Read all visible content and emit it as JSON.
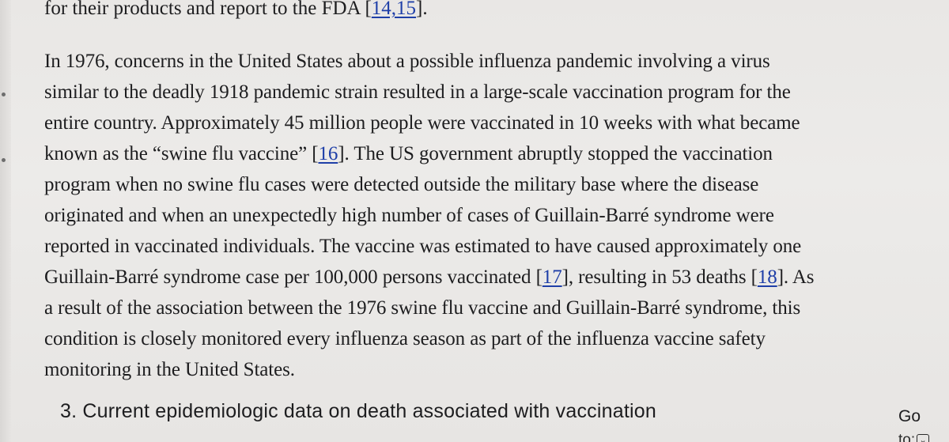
{
  "article": {
    "top_line": {
      "text": "for their products and report to the FDA [",
      "refs": "14,15",
      "end": "]."
    },
    "paragraph": {
      "l1": "In 1976, concerns in the United States about a possible influenza pandemic involving a virus",
      "l2": "similar to the deadly 1918 pandemic strain resulted in a large-scale vaccination program for the",
      "l3": "entire country. Approximately 45 million people were vaccinated in 10 weeks with what became",
      "l4a": "known as the “swine flu vaccine” [",
      "ref16": "16",
      "l4b": "]. The US government abruptly stopped the vaccination",
      "l5": "program when no swine flu cases were detected outside the military base where the disease",
      "l6": "originated and when an unexpectedly high number of cases of Guillain-Barré syndrome were",
      "l7": "reported in vaccinated individuals. The vaccine was estimated to have caused approximately one",
      "l8a": "Guillain-Barré syndrome case per 100,000 persons vaccinated [",
      "ref17": "17",
      "l8b": "], resulting in 53 deaths [",
      "ref18": "18",
      "l8c": "]. As",
      "l9": "a result of the association between the 1976 swine flu vaccine and Guillain-Barré syndrome, this",
      "l10": "condition is closely monitored every influenza season as part of the influenza vaccine safety",
      "l11": "monitoring in the United States."
    },
    "section_heading": "3. Current epidemiologic data on death associated with vaccination"
  },
  "goto": {
    "go": "Go",
    "to": "to:",
    "icon": "chevron-down-icon"
  },
  "colors": {
    "link": "#1f3fa8",
    "text": "#1d1d1f",
    "background": "#eae8e6"
  }
}
